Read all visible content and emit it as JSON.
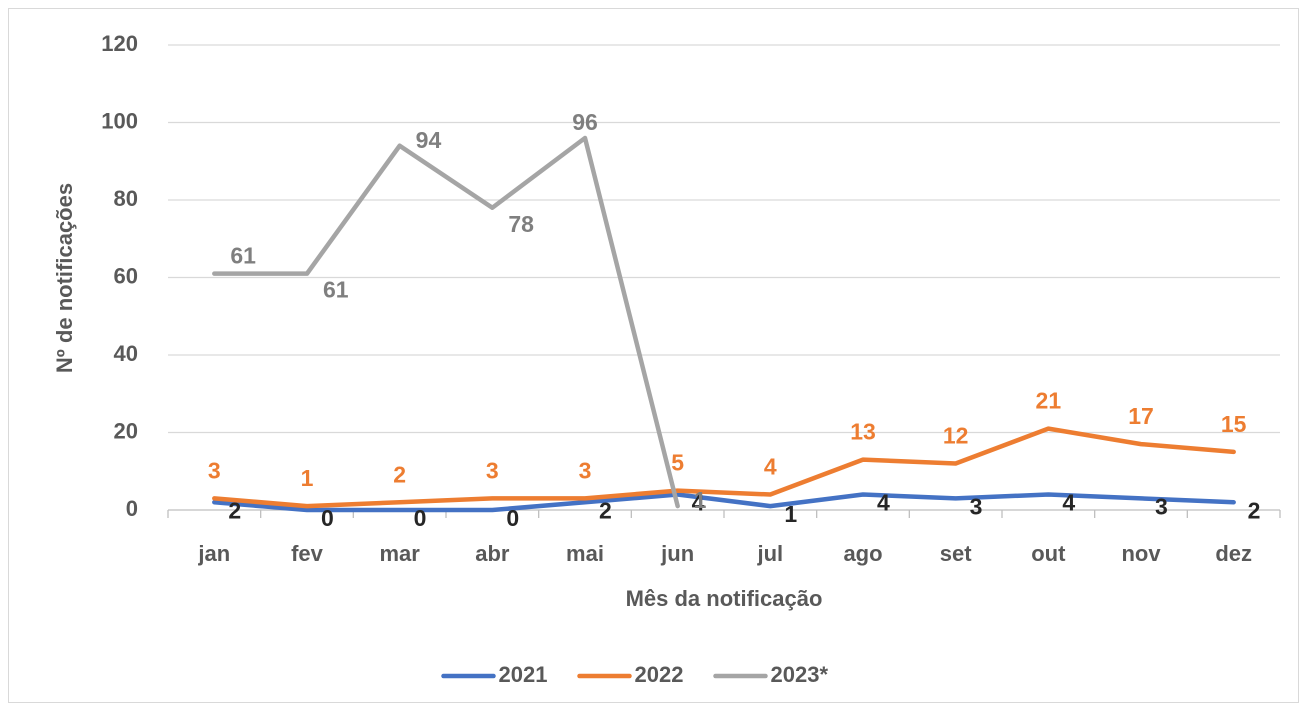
{
  "chart_data": {
    "type": "line",
    "xlabel": "Mês da notificação",
    "ylabel": "Nº de notificações",
    "categories": [
      "jan",
      "fev",
      "mar",
      "abr",
      "mai",
      "jun",
      "jul",
      "ago",
      "set",
      "out",
      "nov",
      "dez"
    ],
    "series": [
      {
        "name": "2021",
        "color": "#4472c4",
        "label_color": "#262626",
        "values": [
          2,
          0,
          0,
          0,
          2,
          4,
          1,
          4,
          3,
          4,
          3,
          2
        ]
      },
      {
        "name": "2022",
        "color": "#ed7d31",
        "label_color": "#ed7d31",
        "values": [
          3,
          1,
          2,
          3,
          3,
          5,
          4,
          13,
          12,
          21,
          17,
          15
        ]
      },
      {
        "name": "2023*",
        "color": "#a5a5a5",
        "label_color": "#7f7f7f",
        "values": [
          61,
          61,
          94,
          78,
          96,
          1,
          null,
          null,
          null,
          null,
          null,
          null
        ]
      }
    ],
    "ylim": [
      0,
      120
    ],
    "yticks": [
      0,
      20,
      40,
      60,
      80,
      100,
      120
    ],
    "grid": true,
    "legend": "bottom"
  }
}
